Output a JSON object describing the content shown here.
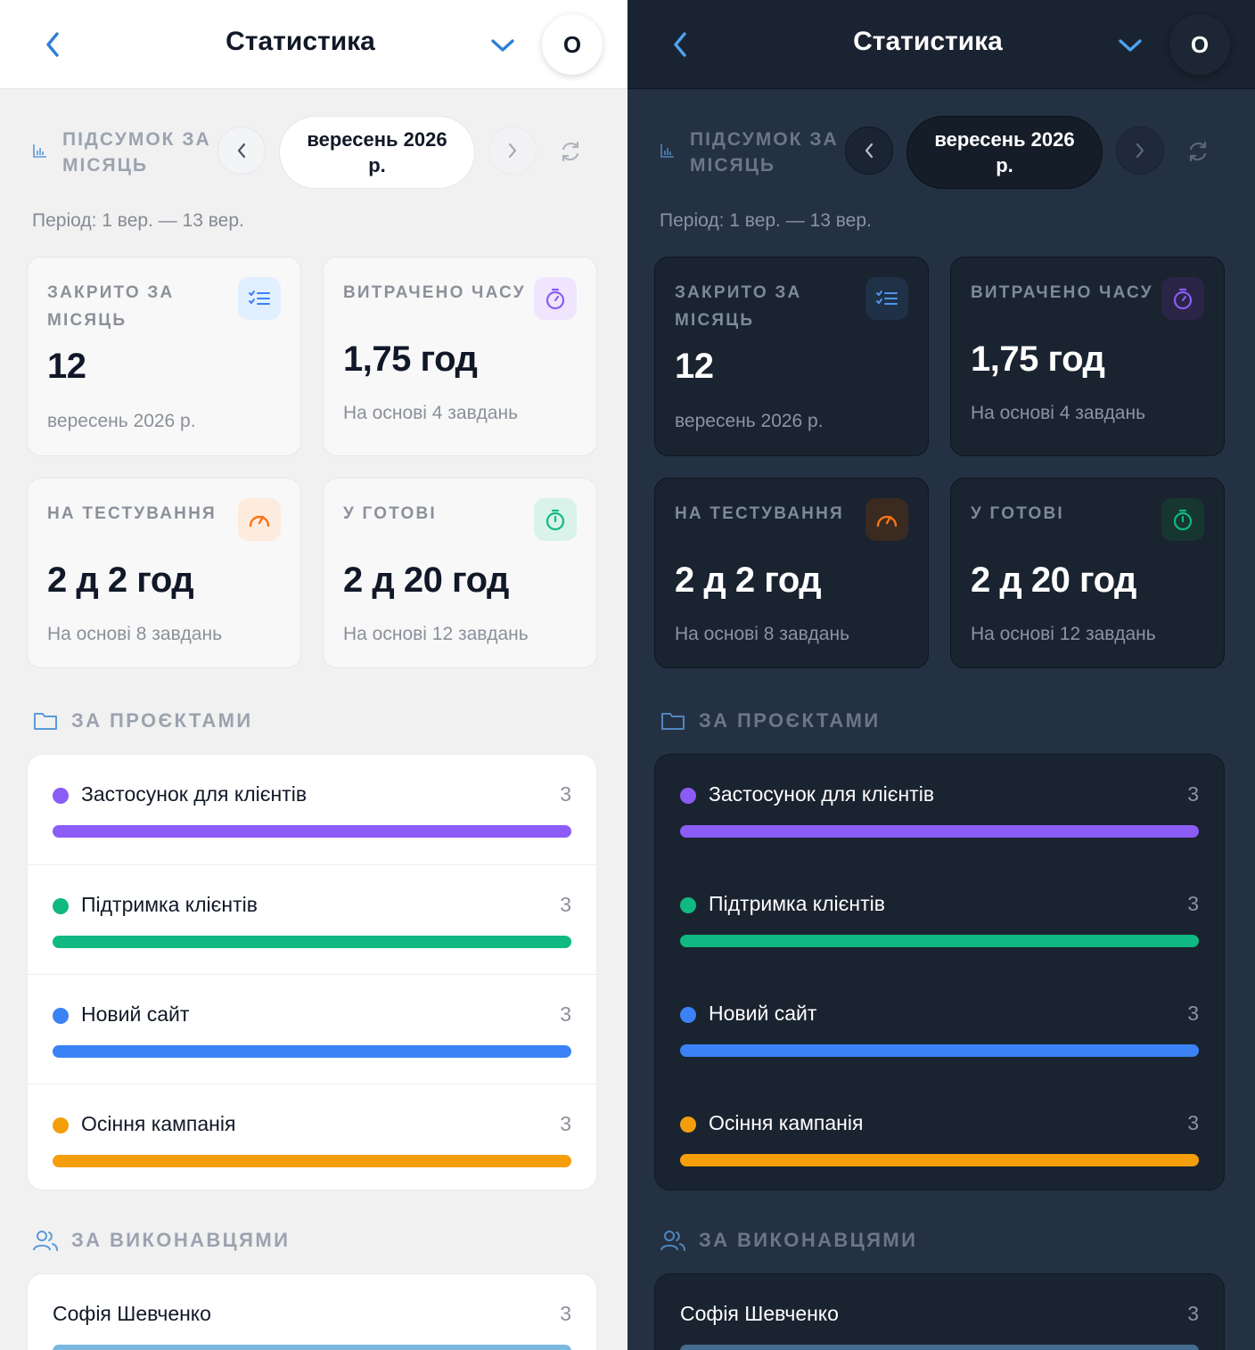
{
  "header": {
    "title": "Статистика",
    "avatar_initial": "O"
  },
  "summary": {
    "label": "ПІДСУМОК ЗА МІСЯЦЬ",
    "month": "вересень 2026 р.",
    "period": "Період: 1 вер. — 13 вер."
  },
  "cards": [
    {
      "label": "ЗАКРИТО ЗА МІСЯЦЬ",
      "value": "12",
      "sub": "вересень 2026 р.",
      "icon": "checklist-icon",
      "accent": "#3b82f6"
    },
    {
      "label": "ВИТРАЧЕНО ЧАСУ",
      "value": "1,75 год",
      "sub": "На основі 4 завдань",
      "icon": "stopwatch-icon",
      "accent": "#8b5cf6"
    },
    {
      "label": "НА ТЕСТУВАННЯ",
      "value": "2 д 2 год",
      "sub": "На основі 8 завдань",
      "icon": "speedometer-icon",
      "accent": "#f97316"
    },
    {
      "label": "У ГОТОВІ",
      "value": "2 д 20 год",
      "sub": "На основі 12 завдань",
      "icon": "timer-icon",
      "accent": "#10b981"
    }
  ],
  "projects": {
    "title": "ЗА ПРОЄКТАМИ",
    "items": [
      {
        "name": "Застосунок для клієнтів",
        "count": "3",
        "color": "#8b5cf6",
        "fraction": 1.0
      },
      {
        "name": "Підтримка клієнтів",
        "count": "3",
        "color": "#10b981",
        "fraction": 1.0
      },
      {
        "name": "Новий сайт",
        "count": "3",
        "color": "#3b82f6",
        "fraction": 1.0
      },
      {
        "name": "Осіння кампанія",
        "count": "3",
        "color": "#f59e0b",
        "fraction": 1.0
      }
    ]
  },
  "executors": {
    "title": "ЗА ВИКОНАВЦЯМИ",
    "items": [
      {
        "name": "Софія Шевченко",
        "count": "3",
        "fraction": 1.0
      }
    ]
  },
  "themes": [
    "light",
    "dark"
  ]
}
